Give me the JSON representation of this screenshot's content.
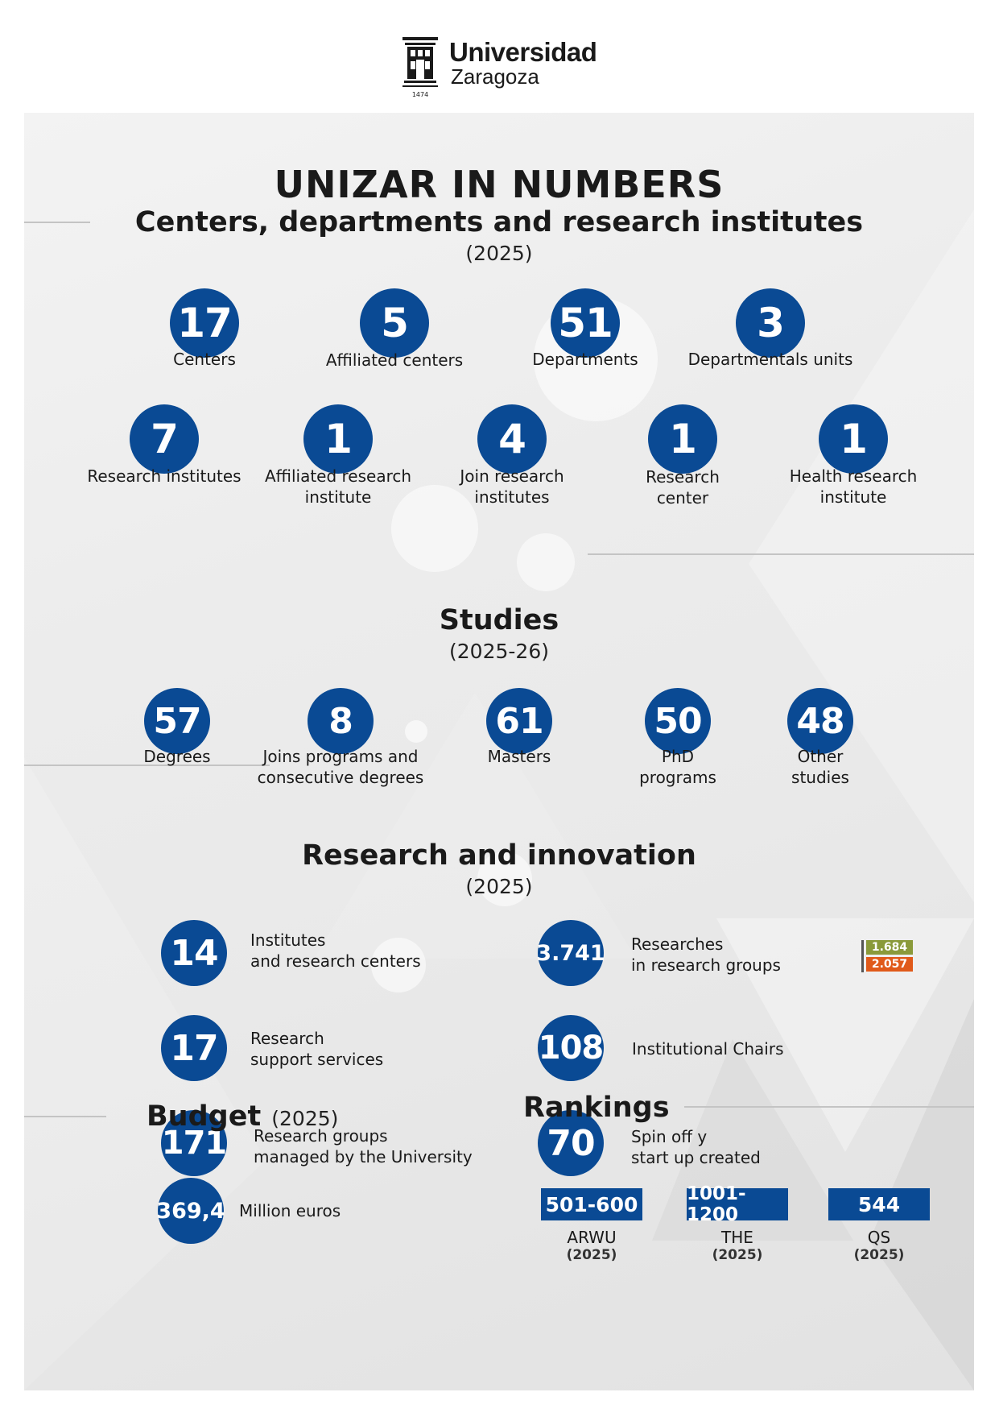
{
  "logo": {
    "word1": "Universidad",
    "word2": "Zaragoza",
    "year": "1474"
  },
  "title": "UNIZAR IN NUMBERS",
  "centers": {
    "heading": "Centers, departments and research institutes",
    "year": "(2025)",
    "items": [
      {
        "value": "17",
        "label": "Centers"
      },
      {
        "value": "5",
        "label": "Affiliated centers"
      },
      {
        "value": "51",
        "label": "Departments"
      },
      {
        "value": "3",
        "label": "Departmentals units"
      },
      {
        "value": "7",
        "label": "Research institutes"
      },
      {
        "value": "1",
        "label_line1": "Affiliated  research",
        "label_line2": "institute"
      },
      {
        "value": "4",
        "label_line1": "Join research",
        "label_line2": "institutes"
      },
      {
        "value": "1",
        "label_line1": "Research",
        "label_line2": "center"
      },
      {
        "value": "1",
        "label_line1": "Health research",
        "label_line2": "institute"
      }
    ]
  },
  "studies": {
    "heading": "Studies",
    "year": "(2025-26)",
    "items": [
      {
        "value": "57",
        "label": "Degrees"
      },
      {
        "value": "8",
        "label_line1": "Joins programs and",
        "label_line2": "consecutive degrees"
      },
      {
        "value": "61",
        "label": "Masters"
      },
      {
        "value": "50",
        "label_line1": "PhD",
        "label_line2": "programs"
      },
      {
        "value": "48",
        "label_line1": "Other",
        "label_line2": "studies"
      }
    ]
  },
  "research": {
    "heading": "Research and innovation",
    "year": "(2025)",
    "items": [
      {
        "value": "14",
        "label_line1": "Institutes",
        "label_line2": "and research centers"
      },
      {
        "value": "3.741",
        "label_line1": "Researches",
        "label_line2": "in research groups"
      },
      {
        "value": "17",
        "label_line1": "Research",
        "label_line2": "support services"
      },
      {
        "value": "108",
        "label": "Institutional Chairs"
      },
      {
        "value": "171",
        "label_line1": "Research groups",
        "label_line2": "managed by the University"
      },
      {
        "value": "70",
        "label_line1": "Spin off y",
        "label_line2": "start up created"
      }
    ],
    "gender_split": [
      {
        "value": "1.684",
        "color": "#8a9a3a"
      },
      {
        "value": "2.057",
        "color": "#e05a1a"
      }
    ]
  },
  "budget": {
    "heading": "Budget",
    "year": "(2025)",
    "value": "369,4",
    "label": "Million euros"
  },
  "rankings": {
    "heading": "Rankings",
    "items": [
      {
        "value": "501-600",
        "name": "ARWU",
        "year": "(2025)"
      },
      {
        "value": "1001-1200",
        "name": "THE",
        "year": "(2025)"
      },
      {
        "value": "544",
        "name": "QS",
        "year": "(2025)"
      }
    ]
  },
  "colors": {
    "accent": "#0a4a94",
    "background": "#ebebeb"
  }
}
